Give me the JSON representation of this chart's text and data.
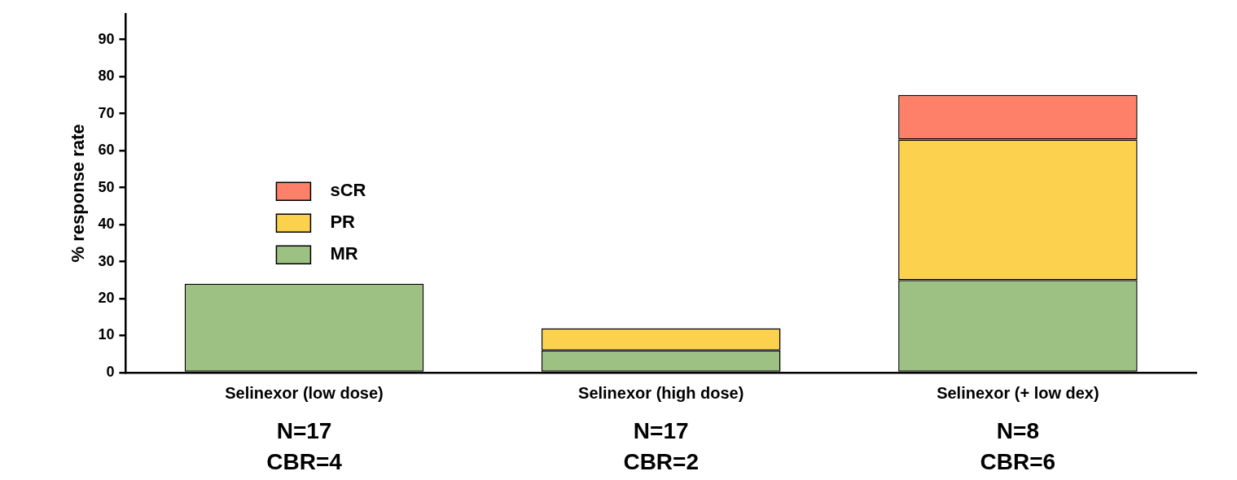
{
  "chart_data": {
    "type": "bar",
    "stacked": true,
    "ylabel": "% response rate",
    "categories": [
      "Selinexor (low dose)",
      "Selinexor (high dose)",
      "Selinexor (+ low dex)"
    ],
    "series": [
      {
        "name": "MR",
        "color": "#9dc182",
        "values": [
          24,
          6,
          25
        ]
      },
      {
        "name": "PR",
        "color": "#fcd14d",
        "values": [
          null,
          6,
          38
        ]
      },
      {
        "name": "sCR",
        "color": "#ff8069",
        "values": [
          null,
          null,
          12
        ]
      }
    ],
    "ylim": [
      0,
      97
    ],
    "yticks": [
      0,
      10,
      20,
      30,
      40,
      50,
      60,
      70,
      80,
      90
    ],
    "grid": false,
    "legend": "left",
    "annotations": [
      "N=17",
      "CBR=4",
      "N=17",
      "CBR=2",
      "N=8",
      "CBR=6"
    ]
  }
}
